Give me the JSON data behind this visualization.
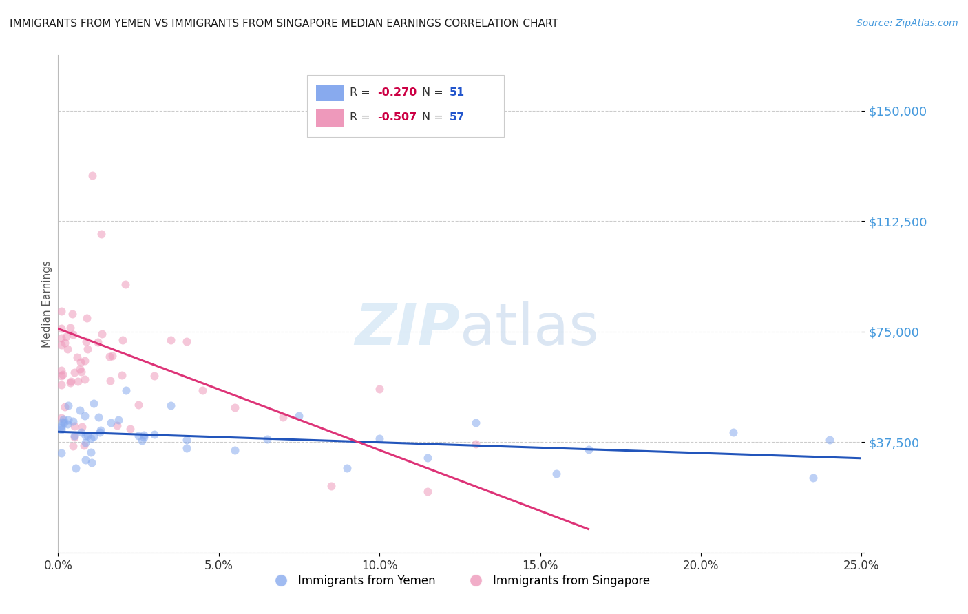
{
  "title": "IMMIGRANTS FROM YEMEN VS IMMIGRANTS FROM SINGAPORE MEDIAN EARNINGS CORRELATION CHART",
  "source": "Source: ZipAtlas.com",
  "ylabel": "Median Earnings",
  "xlim": [
    0.0,
    0.25
  ],
  "ylim": [
    0,
    168750
  ],
  "yticks": [
    0,
    37500,
    75000,
    112500,
    150000
  ],
  "xticks": [
    0.0,
    0.05,
    0.1,
    0.15,
    0.2,
    0.25
  ],
  "xtick_labels": [
    "0.0%",
    "5.0%",
    "10.0%",
    "15.0%",
    "20.0%",
    "25.0%"
  ],
  "yemen_label": "Immigrants from Yemen",
  "singapore_label": "Immigrants from Singapore",
  "yemen_color": "#88aaee",
  "singapore_color": "#ee99bb",
  "line_blue_color": "#2255bb",
  "line_pink_color": "#dd3377",
  "title_color": "#1a1a1a",
  "source_color": "#4499dd",
  "ylabel_color": "#555555",
  "ytick_color": "#4499dd",
  "xtick_color": "#333333",
  "grid_color": "#cccccc",
  "legend_R_color": "#cc0044",
  "legend_N_color": "#2255cc",
  "watermark_color": "#d0e4f5",
  "scatter_alpha": 0.55,
  "scatter_size": 75,
  "yemen_R": -0.27,
  "yemen_N": 51,
  "singapore_R": -0.507,
  "singapore_N": 57,
  "yemen_line_x": [
    0.0,
    0.25
  ],
  "yemen_line_y": [
    41000,
    32000
  ],
  "singapore_line_x": [
    0.0,
    0.165
  ],
  "singapore_line_y": [
    76000,
    8000
  ]
}
